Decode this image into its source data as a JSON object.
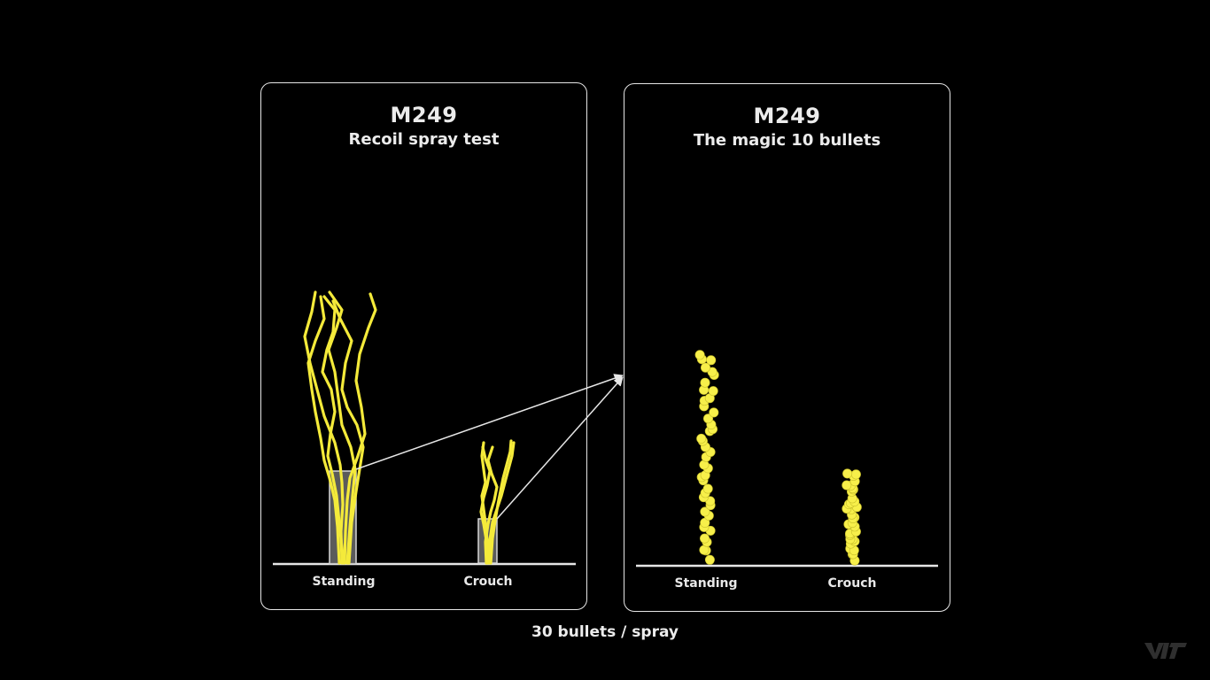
{
  "left_panel": {
    "weapon": "M249",
    "subtitle": "Recoil spray test",
    "categories": [
      "Standing",
      "Crouch"
    ]
  },
  "right_panel": {
    "weapon": "M249",
    "subtitle": "The magic 10 bullets",
    "categories": [
      "Standing",
      "Crouch"
    ]
  },
  "caption": "30 bullets / spray",
  "colors": {
    "background": "#000000",
    "spray": "#f4ea3a",
    "dots": "#f7ef4a",
    "frame": "#e6e6e6",
    "highlight_box": "#7a7a7a"
  },
  "icons": {
    "arrows": "arrow-icon",
    "watermark": "logo-watermark"
  }
}
